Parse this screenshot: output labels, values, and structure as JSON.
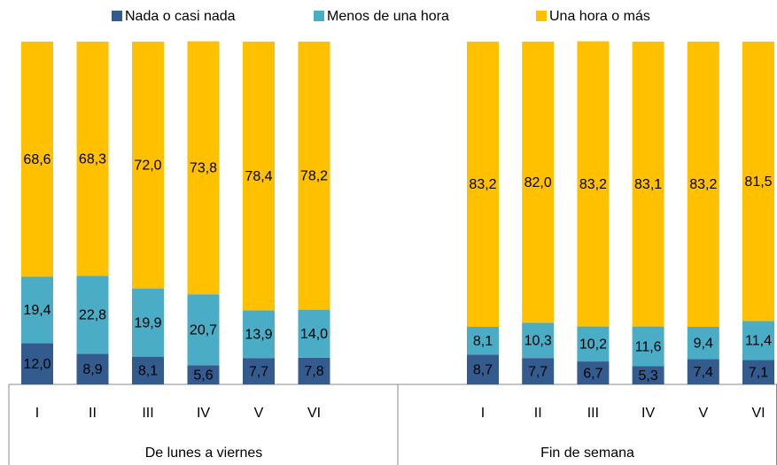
{
  "chart_data": {
    "type": "stacked_bar",
    "categories": [
      "I",
      "II",
      "III",
      "IV",
      "V",
      "VI",
      "I",
      "II",
      "III",
      "IV",
      "V",
      "VI"
    ],
    "groups": [
      "De lunes a viernes",
      "Fin de semana"
    ],
    "ylim": [
      0,
      100
    ],
    "legend": "top",
    "series": [
      {
        "name": "Nada o casi nada",
        "color": "#335b8e",
        "values": [
          12.0,
          8.9,
          8.1,
          5.6,
          7.7,
          7.8,
          8.7,
          7.7,
          6.7,
          5.3,
          7.4,
          7.1
        ],
        "value_labels": [
          "12,0",
          "8,9",
          "8,1",
          "5,6",
          "7,7",
          "7,8",
          "8,7",
          "7,7",
          "6,7",
          "5,3",
          "7,4",
          "7,1"
        ]
      },
      {
        "name": "Menos de una hora",
        "color": "#4bacc6",
        "values": [
          19.4,
          22.8,
          19.9,
          20.7,
          13.9,
          14.0,
          8.1,
          10.3,
          10.2,
          11.6,
          9.4,
          11.4
        ],
        "value_labels": [
          "19,4",
          "22,8",
          "19,9",
          "20,7",
          "13,9",
          "14,0",
          "8,1",
          "10,3",
          "10,2",
          "11,6",
          "9,4",
          "11,4"
        ]
      },
      {
        "name": "Una hora o más",
        "color": "#ffc000",
        "values": [
          68.6,
          68.3,
          72.0,
          73.8,
          78.4,
          78.2,
          83.2,
          82.0,
          83.2,
          83.1,
          83.2,
          81.5
        ],
        "value_labels": [
          "68,6",
          "68,3",
          "72,0",
          "73,8",
          "78,4",
          "78,2",
          "83,2",
          "82,0",
          "83,2",
          "83,1",
          "83,2",
          "81,5"
        ]
      }
    ]
  }
}
